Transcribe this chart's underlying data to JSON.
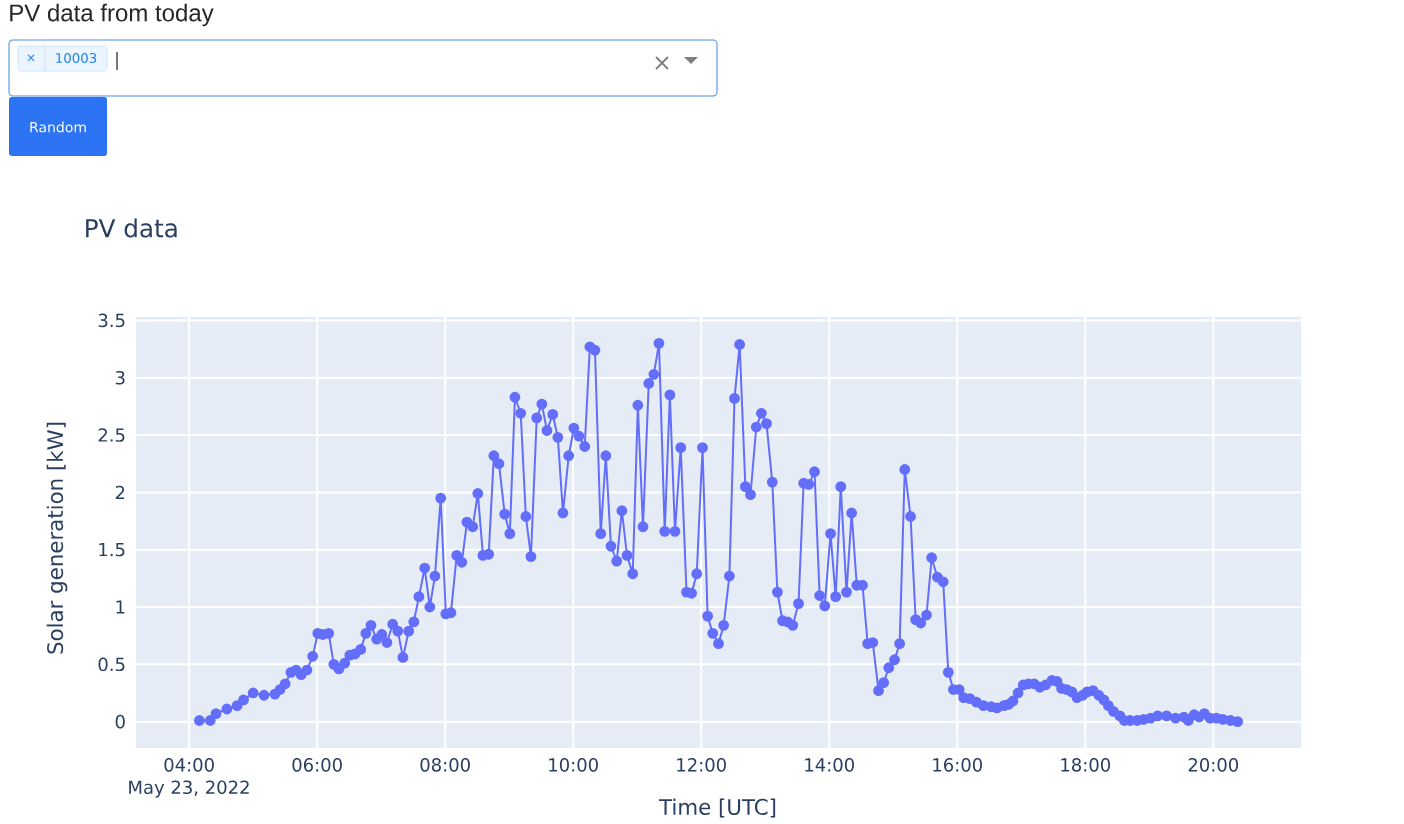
{
  "chart_data": {
    "type": "line",
    "title": "PV data",
    "xlabel": "Time [UTC]",
    "ylabel": "Solar generation [kW]",
    "annotations": [
      "PV data from today",
      "×",
      "10003",
      "Random",
      "May 23, 2022"
    ],
    "color": "#636efa",
    "marker": "circle",
    "line_style": "solid",
    "grid": true,
    "x": [
      4.16,
      4.33,
      4.42,
      4.59,
      4.75,
      4.85,
      5.0,
      5.17,
      5.34,
      5.42,
      5.5,
      5.59,
      5.67,
      5.75,
      5.84,
      5.93,
      6.01,
      6.09,
      6.18,
      6.26,
      6.34,
      6.43,
      6.51,
      6.59,
      6.68,
      6.76,
      6.84,
      6.93,
      7.01,
      7.09,
      7.18,
      7.26,
      7.34,
      7.43,
      7.51,
      7.59,
      7.68,
      7.76,
      7.84,
      7.93,
      8.01,
      8.09,
      8.18,
      8.26,
      8.34,
      8.43,
      8.51,
      8.59,
      8.68,
      8.76,
      8.84,
      8.93,
      9.01,
      9.09,
      9.18,
      9.26,
      9.34,
      9.43,
      9.51,
      9.59,
      9.68,
      9.76,
      9.84,
      9.93,
      10.01,
      10.09,
      10.18,
      10.26,
      10.34,
      10.43,
      10.51,
      10.59,
      10.68,
      10.76,
      10.84,
      10.93,
      11.01,
      11.09,
      11.18,
      11.26,
      11.34,
      11.43,
      11.51,
      11.59,
      11.68,
      11.77,
      11.85,
      11.93,
      12.02,
      12.1,
      12.18,
      12.27,
      12.35,
      12.44,
      12.52,
      12.6,
      12.69,
      12.77,
      12.86,
      12.94,
      13.02,
      13.11,
      13.19,
      13.27,
      13.35,
      13.43,
      13.52,
      13.6,
      13.68,
      13.77,
      13.85,
      13.93,
      14.02,
      14.1,
      14.18,
      14.27,
      14.35,
      14.43,
      14.52,
      14.6,
      14.68,
      14.77,
      14.85,
      14.93,
      15.02,
      15.1,
      15.18,
      15.27,
      15.35,
      15.43,
      15.52,
      15.6,
      15.69,
      15.78,
      15.86,
      15.94,
      16.03,
      16.1,
      16.2,
      16.3,
      16.41,
      16.53,
      16.62,
      16.73,
      16.8,
      16.87,
      16.95,
      17.03,
      17.11,
      17.2,
      17.29,
      17.38,
      17.48,
      17.56,
      17.63,
      17.71,
      17.79,
      17.87,
      17.96,
      18.03,
      18.12,
      18.21,
      18.29,
      18.36,
      18.44,
      18.54,
      18.61,
      18.7,
      18.81,
      18.91,
      19.02,
      19.13,
      19.27,
      19.41,
      19.54,
      19.61,
      19.7,
      19.78,
      19.86,
      19.95,
      20.05,
      20.15,
      20.27,
      20.38
    ],
    "values": [
      0.01,
      0.01,
      0.07,
      0.11,
      0.14,
      0.19,
      0.25,
      0.23,
      0.24,
      0.28,
      0.33,
      0.43,
      0.45,
      0.41,
      0.45,
      0.57,
      0.77,
      0.76,
      0.77,
      0.5,
      0.46,
      0.51,
      0.58,
      0.59,
      0.63,
      0.77,
      0.84,
      0.72,
      0.76,
      0.69,
      0.85,
      0.79,
      0.56,
      0.79,
      0.87,
      1.09,
      1.34,
      1.0,
      1.27,
      1.95,
      0.94,
      0.95,
      1.45,
      1.39,
      1.74,
      1.7,
      1.99,
      1.45,
      1.46,
      2.32,
      2.25,
      1.81,
      1.64,
      2.83,
      2.69,
      1.79,
      1.44,
      2.65,
      2.77,
      2.54,
      2.68,
      2.48,
      1.82,
      2.32,
      2.56,
      2.49,
      2.4,
      3.27,
      3.24,
      1.64,
      2.32,
      1.53,
      1.4,
      1.84,
      1.45,
      1.29,
      2.76,
      1.7,
      2.95,
      3.03,
      3.3,
      1.66,
      2.85,
      1.66,
      2.39,
      1.13,
      1.12,
      1.29,
      2.39,
      0.92,
      0.77,
      0.68,
      0.84,
      1.27,
      2.82,
      3.29,
      2.05,
      1.98,
      2.57,
      2.69,
      2.6,
      2.09,
      1.13,
      0.88,
      0.87,
      0.84,
      1.03,
      2.08,
      2.07,
      2.18,
      1.1,
      1.01,
      1.64,
      1.09,
      2.05,
      1.13,
      1.82,
      1.19,
      1.19,
      0.68,
      0.69,
      0.27,
      0.34,
      0.47,
      0.54,
      0.68,
      2.2,
      1.79,
      0.89,
      0.86,
      0.93,
      1.43,
      1.26,
      1.22,
      0.43,
      0.28,
      0.28,
      0.21,
      0.2,
      0.17,
      0.14,
      0.13,
      0.12,
      0.14,
      0.15,
      0.18,
      0.25,
      0.32,
      0.33,
      0.33,
      0.3,
      0.32,
      0.36,
      0.35,
      0.29,
      0.28,
      0.26,
      0.21,
      0.23,
      0.26,
      0.27,
      0.23,
      0.19,
      0.14,
      0.09,
      0.05,
      0.01,
      0.01,
      0.01,
      0.02,
      0.03,
      0.05,
      0.05,
      0.03,
      0.04,
      0.01,
      0.06,
      0.04,
      0.07,
      0.03,
      0.03,
      0.02,
      0.01,
      0.0
    ],
    "xlim": [
      3.17,
      21.37
    ],
    "ylim": [
      -0.23,
      3.53
    ],
    "xticks": [
      {
        "value": 4,
        "label": "04:00"
      },
      {
        "value": 6,
        "label": "06:00"
      },
      {
        "value": 8,
        "label": "08:00"
      },
      {
        "value": 10,
        "label": "10:00"
      },
      {
        "value": 12,
        "label": "12:00"
      },
      {
        "value": 14,
        "label": "14:00"
      },
      {
        "value": 16,
        "label": "16:00"
      },
      {
        "value": 18,
        "label": "18:00"
      },
      {
        "value": 20,
        "label": "20:00"
      }
    ],
    "yticks": [
      0,
      0.5,
      1,
      1.5,
      2,
      2.5,
      3,
      3.5
    ]
  }
}
